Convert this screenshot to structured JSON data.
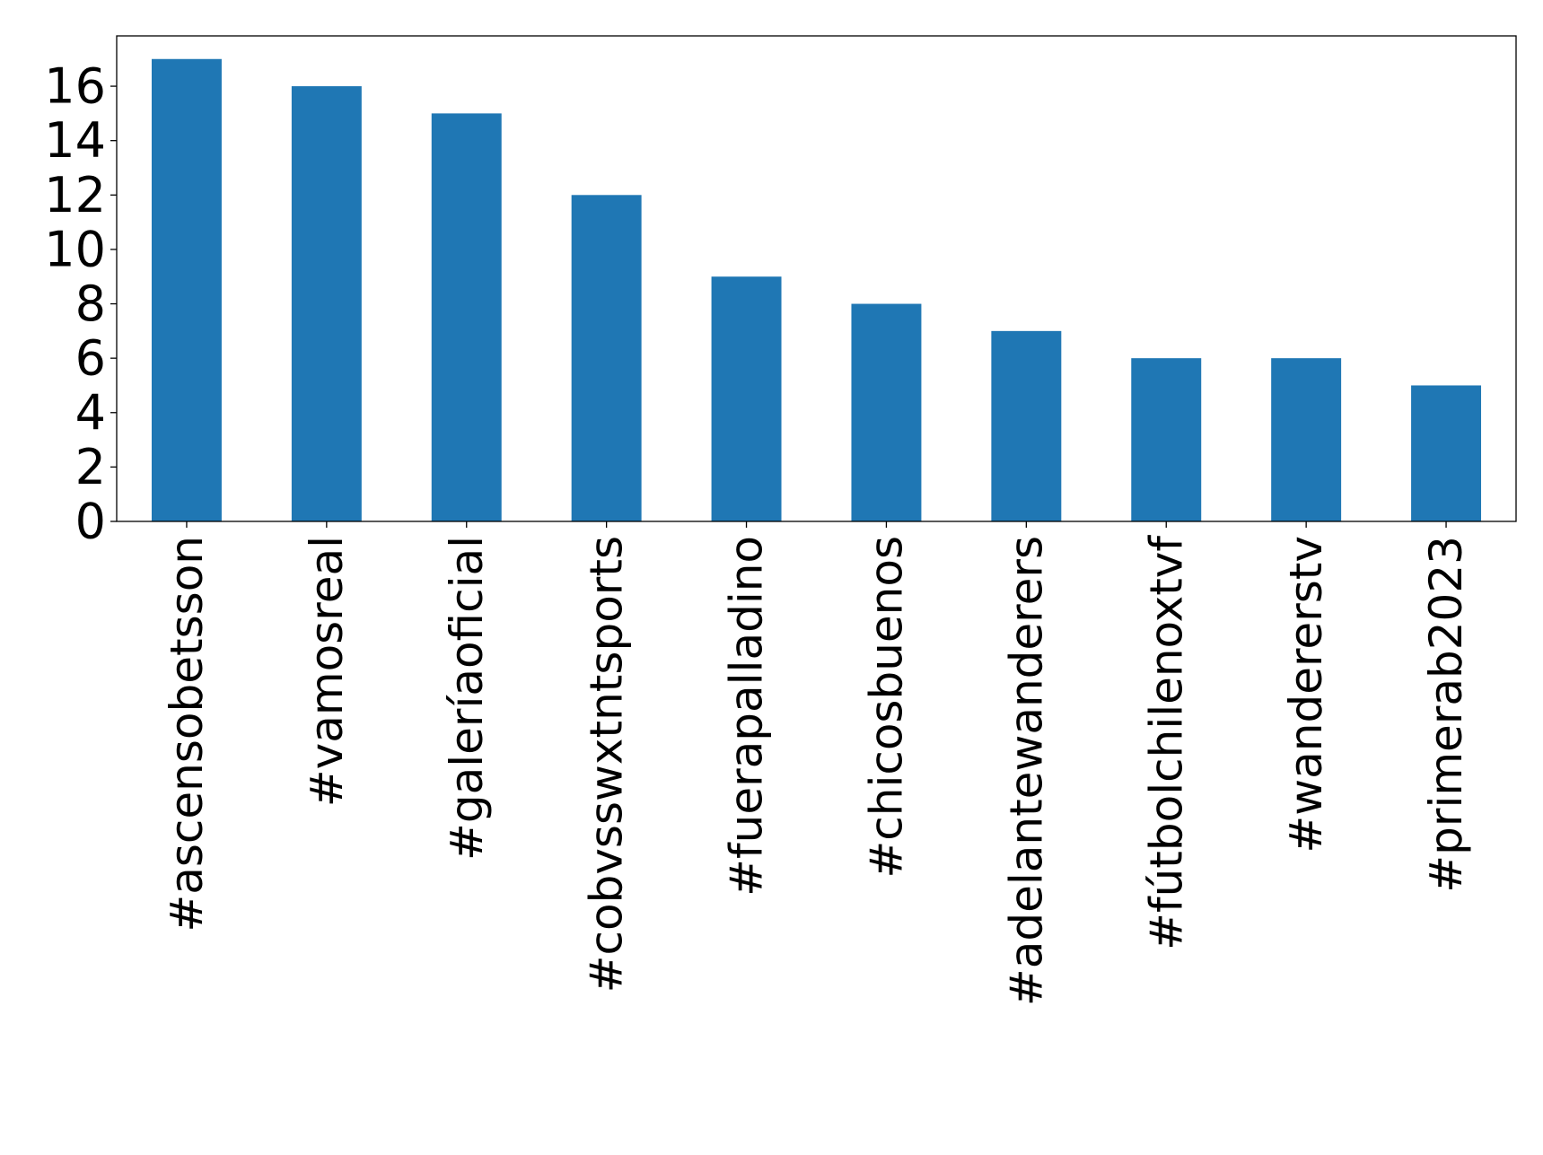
{
  "chart_data": {
    "type": "bar",
    "title": "",
    "xlabel": "",
    "ylabel": "",
    "categories": [
      "#ascensobetsson",
      "#vamosreal",
      "#galeríaoficial",
      "#cobvsswxtntsports",
      "#fuerapalladino",
      "#chicosbuenos",
      "#adelantewanderers",
      "#fútbolchilenoxtvf",
      "#wandererstv",
      "#primerab2023"
    ],
    "values": [
      17,
      16,
      15,
      12,
      9,
      8,
      7,
      6,
      6,
      5
    ],
    "ylim": [
      0,
      17.85
    ],
    "yticks": [
      0,
      2,
      4,
      6,
      8,
      10,
      12,
      14,
      16
    ],
    "grid": false,
    "legend": "none",
    "colors": {
      "bar": "#1f77b4",
      "axis": "#000000",
      "background": "#ffffff"
    }
  }
}
